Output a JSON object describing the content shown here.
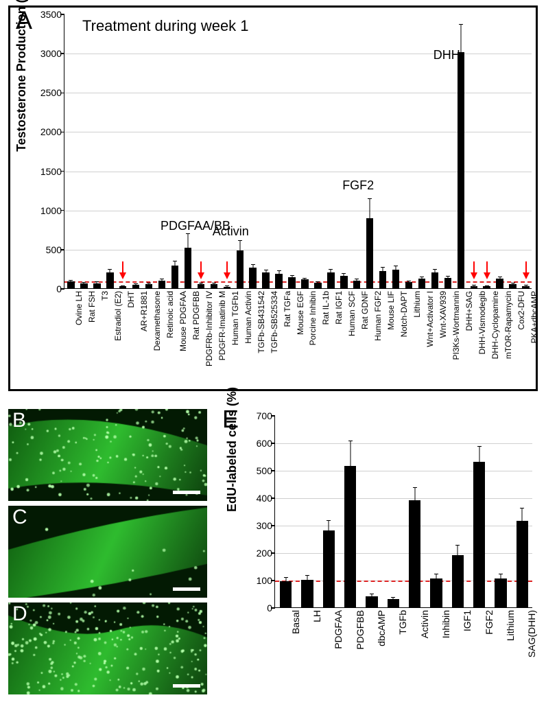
{
  "panelA": {
    "label": "A",
    "title": "Treatment during week 1",
    "ylabel": "Testosterone Production (%)",
    "ylim": [
      0,
      3500
    ],
    "ytick_step": 500,
    "grid_color": "#cfcfcf",
    "bar_color": "#000000",
    "baseline_value": 100,
    "baseline_color": "#d22",
    "arrow_color": "#ff0000",
    "categories": [
      "Ovine LH",
      "Rat FSH",
      "T3",
      "Estradiol (E2)",
      "DHT",
      "AR+R1881",
      "Dexamethasone",
      "Retinoic acid",
      "Mouse PDGFAA",
      "Rat PDGFBB",
      "PDGFRb-Inhibitor IV",
      "PDGFR-Imatinib M",
      "Human TGFb1",
      "Human Activin",
      "TGFb-SB431542",
      "TGFb-SB525334",
      "Rat TGFa",
      "Mouse EGF",
      "Porcine Inhibin",
      "Rat IL-1b",
      "Rat IGF1",
      "Human SCF",
      "Rat GDNF",
      "Human FGF2",
      "Mouse LIF",
      "Notch-DAPT",
      "Lithium",
      "Wnt+Activator I",
      "Wnt-XAV939",
      "PI3Ks-Wortmannin",
      "DHH+SAG",
      "DHH-Vismodegib",
      "DHH-Cyclopamine",
      "mTOR-Rapamycin",
      "Cox2-DFU",
      "PKA+dbcAMP"
    ],
    "values": [
      85,
      60,
      65,
      200,
      25,
      45,
      55,
      100,
      290,
      520,
      50,
      55,
      20,
      480,
      260,
      200,
      185,
      140,
      110,
      70,
      200,
      160,
      100,
      890,
      220,
      240,
      75,
      120,
      200,
      130,
      3010,
      30,
      25,
      120,
      50,
      30
    ],
    "errors": [
      15,
      10,
      10,
      40,
      5,
      8,
      8,
      15,
      50,
      170,
      10,
      10,
      5,
      120,
      40,
      30,
      30,
      20,
      15,
      10,
      35,
      25,
      15,
      250,
      40,
      40,
      12,
      18,
      35,
      20,
      350,
      5,
      5,
      20,
      8,
      5
    ],
    "annotations": [
      {
        "text": "PDGFAA/BB",
        "x_idx": 9,
        "y": 720
      },
      {
        "text": "Activin",
        "x_idx": 13,
        "y": 650
      },
      {
        "text": "FGF2",
        "x_idx": 23,
        "y": 1230
      },
      {
        "text": "DHH",
        "x_idx": 30,
        "y": 2900
      }
    ],
    "arrows_at_idx": [
      4,
      10,
      12,
      31,
      32,
      35
    ]
  },
  "panelB": {
    "label": "B",
    "dot_density": 1.0,
    "bg": "#0a4a0a",
    "tube": "#2fbc2f"
  },
  "panelC": {
    "label": "C",
    "dot_density": 0.08,
    "bg": "#0a4a0a",
    "tube": "#2fbc2f"
  },
  "panelD": {
    "label": "D",
    "dot_density": 1.6,
    "bg": "#0a4a0a",
    "tube": "#2fbc2f"
  },
  "panelE": {
    "label": "E",
    "ylabel": "EdU-labeled cells (%)",
    "ylim": [
      0,
      700
    ],
    "ytick_step": 100,
    "baseline_value": 100,
    "baseline_color": "#d22",
    "grid_color": "#cfcfcf",
    "bar_color": "#000000",
    "categories": [
      "Basal",
      "LH",
      "PDGFAA",
      "PDGFBB",
      "dbcAMP",
      "TGFb",
      "Activin",
      "Inhibin",
      "IGF1",
      "FGF2",
      "Lithium",
      "SAG(DHH)"
    ],
    "values": [
      95,
      100,
      280,
      515,
      40,
      30,
      390,
      105,
      190,
      530,
      105,
      315
    ],
    "errors": [
      12,
      15,
      35,
      90,
      8,
      6,
      45,
      14,
      35,
      55,
      15,
      45
    ]
  }
}
